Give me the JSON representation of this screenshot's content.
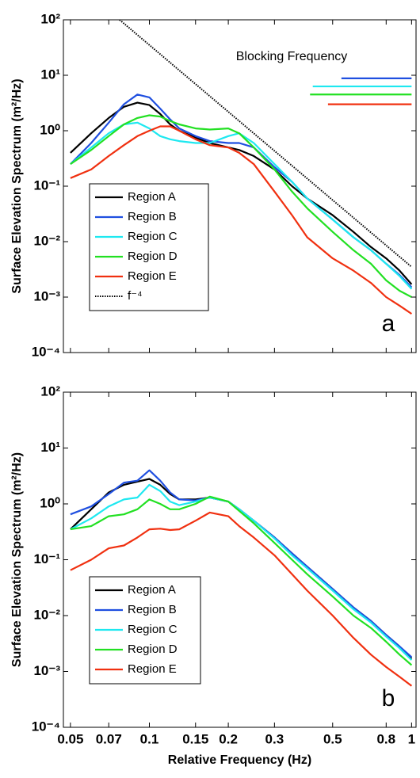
{
  "chart_data": [
    {
      "type": "line",
      "panel_label": "a",
      "ylabel": "Surface Elevation Spectrum (m²/Hz)",
      "xscale": "log",
      "yscale": "log",
      "xlim": [
        0.047,
        1.04
      ],
      "ylim": [
        0.0001,
        100
      ],
      "xticks": [
        0.05,
        0.07,
        0.1,
        0.15,
        0.2,
        0.3,
        0.5,
        0.8,
        1
      ],
      "yticks": [
        {
          "value": 0.0001,
          "label": "10⁻⁴"
        },
        {
          "value": 0.001,
          "label": "10⁻³"
        },
        {
          "value": 0.01,
          "label": "10⁻²"
        },
        {
          "value": 0.1,
          "label": "10⁻¹"
        },
        {
          "value": 1,
          "label": "10⁰"
        },
        {
          "value": 10,
          "label": "10¹"
        },
        {
          "value": 100,
          "label": "10²"
        }
      ],
      "legend": "lower left",
      "x": [
        0.05,
        0.06,
        0.07,
        0.08,
        0.09,
        0.1,
        0.11,
        0.12,
        0.13,
        0.15,
        0.17,
        0.2,
        0.22,
        0.25,
        0.3,
        0.35,
        0.4,
        0.5,
        0.6,
        0.7,
        0.8,
        0.9,
        1.0
      ],
      "series": [
        {
          "name": "Region A",
          "color": "#000000",
          "values": [
            0.4,
            0.9,
            1.7,
            2.7,
            3.2,
            2.9,
            2.0,
            1.3,
            1.0,
            0.75,
            0.6,
            0.5,
            0.45,
            0.35,
            0.2,
            0.1,
            0.06,
            0.03,
            0.015,
            0.008,
            0.005,
            0.003,
            0.0017
          ]
        },
        {
          "name": "Region B",
          "color": "#1f4fe0",
          "values": [
            0.25,
            0.6,
            1.4,
            3.0,
            4.5,
            4.0,
            2.5,
            1.6,
            1.1,
            0.8,
            0.65,
            0.6,
            0.6,
            0.5,
            0.22,
            0.12,
            0.06,
            0.025,
            0.012,
            0.007,
            0.004,
            0.0025,
            0.0015
          ]
        },
        {
          "name": "Region C",
          "color": "#1ee8f0",
          "values": [
            0.25,
            0.5,
            0.9,
            1.3,
            1.4,
            1.1,
            0.8,
            0.7,
            0.65,
            0.6,
            0.6,
            0.8,
            0.9,
            0.6,
            0.25,
            0.12,
            0.06,
            0.025,
            0.012,
            0.007,
            0.004,
            0.0024,
            0.0014
          ]
        },
        {
          "name": "Region D",
          "color": "#22e022",
          "values": [
            0.25,
            0.45,
            0.8,
            1.3,
            1.7,
            1.9,
            1.8,
            1.5,
            1.3,
            1.1,
            1.05,
            1.1,
            0.9,
            0.5,
            0.2,
            0.08,
            0.04,
            0.015,
            0.007,
            0.004,
            0.002,
            0.0013,
            0.001
          ]
        },
        {
          "name": "Region E",
          "color": "#f03010",
          "values": [
            0.14,
            0.2,
            0.35,
            0.55,
            0.8,
            1.0,
            1.2,
            1.2,
            1.0,
            0.7,
            0.55,
            0.5,
            0.4,
            0.25,
            0.08,
            0.03,
            0.012,
            0.005,
            0.003,
            0.0018,
            0.001,
            0.0007,
            0.0005
          ]
        },
        {
          "name": "f⁻⁴",
          "color": "#000000",
          "dotted": true,
          "x": [
            0.077,
            1.0
          ],
          "values": [
            100,
            0.0035
          ]
        }
      ],
      "annotation": {
        "text": "Blocking Frequency",
        "ranges": [
          {
            "color": "#1f4fe0",
            "x": [
              0.54,
              1.0
            ],
            "y": 8.8
          },
          {
            "color": "#1ee8f0",
            "x": [
              0.42,
              1.0
            ],
            "y": 6.3
          },
          {
            "color": "#22e022",
            "x": [
              0.41,
              1.0
            ],
            "y": 4.5
          },
          {
            "color": "#f03010",
            "x": [
              0.48,
              1.0
            ],
            "y": 3.0
          }
        ]
      }
    },
    {
      "type": "line",
      "panel_label": "b",
      "ylabel": "Surface Elevation Spectrum (m²/Hz)",
      "xlabel": "Relative Frequency (Hz)",
      "xscale": "log",
      "yscale": "log",
      "xlim": [
        0.047,
        1.04
      ],
      "ylim": [
        0.0001,
        100
      ],
      "xticks": [
        0.05,
        0.07,
        0.1,
        0.15,
        0.2,
        0.3,
        0.5,
        0.8,
        1
      ],
      "yticks": [
        {
          "value": 0.0001,
          "label": "10⁻⁴"
        },
        {
          "value": 0.001,
          "label": "10⁻³"
        },
        {
          "value": 0.01,
          "label": "10⁻²"
        },
        {
          "value": 0.1,
          "label": "10⁻¹"
        },
        {
          "value": 1,
          "label": "10⁰"
        },
        {
          "value": 10,
          "label": "10¹"
        },
        {
          "value": 100,
          "label": "10²"
        }
      ],
      "legend": "lower left",
      "x": [
        0.05,
        0.06,
        0.07,
        0.08,
        0.09,
        0.1,
        0.11,
        0.12,
        0.13,
        0.15,
        0.17,
        0.2,
        0.22,
        0.25,
        0.3,
        0.35,
        0.4,
        0.5,
        0.6,
        0.7,
        0.8,
        0.9,
        1.0
      ],
      "series": [
        {
          "name": "Region A",
          "color": "#000000",
          "values": [
            0.35,
            0.8,
            1.6,
            2.2,
            2.5,
            2.8,
            2.2,
            1.5,
            1.2,
            1.2,
            1.3,
            1.1,
            0.8,
            0.5,
            0.25,
            0.13,
            0.075,
            0.03,
            0.014,
            0.008,
            0.0045,
            0.0028,
            0.0017
          ]
        },
        {
          "name": "Region B",
          "color": "#1f4fe0",
          "values": [
            0.65,
            0.9,
            1.5,
            2.4,
            2.6,
            4.0,
            2.6,
            1.6,
            1.2,
            1.15,
            1.3,
            1.1,
            0.8,
            0.5,
            0.25,
            0.13,
            0.075,
            0.03,
            0.014,
            0.008,
            0.0045,
            0.0028,
            0.0018
          ]
        },
        {
          "name": "Region C",
          "color": "#1ee8f0",
          "values": [
            0.35,
            0.55,
            0.9,
            1.2,
            1.3,
            2.2,
            1.7,
            1.1,
            0.95,
            1.1,
            1.3,
            1.1,
            0.8,
            0.5,
            0.24,
            0.12,
            0.07,
            0.028,
            0.013,
            0.0075,
            0.0042,
            0.0026,
            0.0016
          ]
        },
        {
          "name": "Region D",
          "color": "#22e022",
          "values": [
            0.35,
            0.4,
            0.6,
            0.65,
            0.8,
            1.2,
            1.0,
            0.8,
            0.8,
            1.0,
            1.35,
            1.1,
            0.75,
            0.45,
            0.2,
            0.1,
            0.055,
            0.022,
            0.01,
            0.006,
            0.0034,
            0.002,
            0.0013
          ]
        },
        {
          "name": "Region E",
          "color": "#f03010",
          "values": [
            0.065,
            0.1,
            0.16,
            0.18,
            0.25,
            0.35,
            0.36,
            0.34,
            0.35,
            0.5,
            0.7,
            0.6,
            0.4,
            0.25,
            0.12,
            0.055,
            0.028,
            0.01,
            0.004,
            0.002,
            0.0012,
            0.0008,
            0.00055
          ]
        }
      ]
    }
  ]
}
